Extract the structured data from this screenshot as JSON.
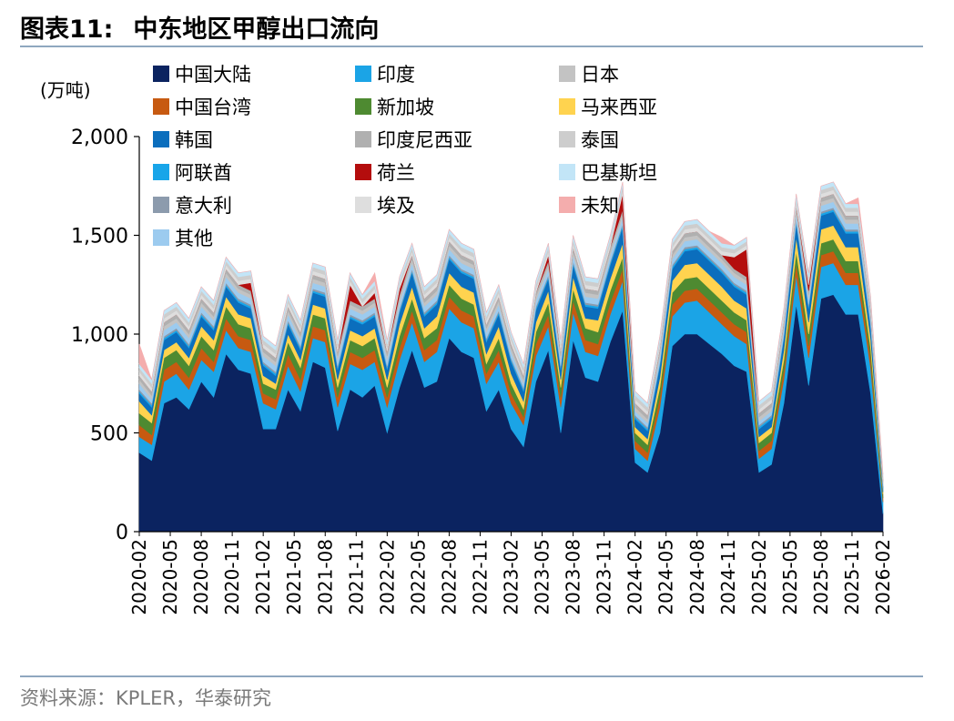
{
  "header": {
    "figure_no": "图表11:",
    "title": "中东地区甲醇出口流向"
  },
  "footer": {
    "source": "资料来源：KPLER，华泰研究"
  },
  "chart_data": {
    "type": "area",
    "stacked": true,
    "ylabel": "(万吨)",
    "ylim": [
      0,
      2000
    ],
    "yticks": [
      0,
      500,
      1000,
      1500,
      2000
    ],
    "ytick_labels": [
      "0",
      "500",
      "1,000",
      "1,500",
      "2,000"
    ],
    "xtick_labels": [
      "2020-02",
      "2020-05",
      "2020-08",
      "2020-11",
      "2021-02",
      "2021-05",
      "2021-08",
      "2021-11",
      "2022-02",
      "2022-05",
      "2022-08",
      "2022-11",
      "2023-02",
      "2023-05",
      "2023-08",
      "2023-11",
      "2024-02",
      "2024-05",
      "2024-08",
      "2024-11",
      "2025-02",
      "2025-05",
      "2025-08",
      "2025-11",
      "2026-02"
    ],
    "legend_position": "top-left",
    "grid": false,
    "series": [
      {
        "name": "中国大陆",
        "color": "#0b2360",
        "values": [
          400,
          360,
          650,
          680,
          620,
          760,
          680,
          900,
          820,
          800,
          520,
          520,
          720,
          610,
          860,
          830,
          510,
          720,
          680,
          740,
          500,
          730,
          920,
          730,
          760,
          980,
          910,
          880,
          610,
          720,
          520,
          430,
          760,
          920,
          500,
          970,
          780,
          760,
          960,
          1120,
          350,
          300,
          500,
          940,
          1000,
          1000,
          950,
          900,
          840,
          810,
          300,
          340,
          650,
          1150,
          740,
          1180,
          1200,
          1100,
          1100,
          700,
          90
        ]
      },
      {
        "name": "印度",
        "color": "#1ba4e6",
        "values": [
          80,
          80,
          110,
          120,
          100,
          110,
          130,
          120,
          110,
          110,
          130,
          100,
          120,
          100,
          120,
          130,
          120,
          130,
          140,
          120,
          130,
          140,
          140,
          130,
          150,
          150,
          150,
          150,
          140,
          140,
          130,
          110,
          130,
          120,
          130,
          140,
          130,
          130,
          140,
          150,
          70,
          60,
          130,
          150,
          160,
          170,
          160,
          150,
          150,
          140,
          70,
          80,
          120,
          150,
          140,
          160,
          160,
          150,
          150,
          130,
          60
        ]
      },
      {
        "name": "中国台湾",
        "color": "#c75a11",
        "values": [
          60,
          50,
          60,
          60,
          60,
          60,
          50,
          60,
          60,
          60,
          50,
          50,
          60,
          60,
          60,
          60,
          50,
          60,
          60,
          60,
          50,
          60,
          60,
          60,
          60,
          60,
          60,
          60,
          50,
          60,
          50,
          40,
          60,
          60,
          50,
          60,
          60,
          60,
          60,
          60,
          40,
          40,
          50,
          60,
          60,
          60,
          60,
          60,
          60,
          60,
          40,
          40,
          50,
          60,
          60,
          60,
          60,
          60,
          60,
          50,
          20
        ]
      },
      {
        "name": "新加坡",
        "color": "#4e8a31",
        "values": [
          60,
          60,
          60,
          60,
          60,
          60,
          60,
          60,
          60,
          60,
          50,
          50,
          60,
          60,
          60,
          60,
          50,
          60,
          60,
          60,
          50,
          60,
          60,
          60,
          60,
          60,
          60,
          60,
          50,
          60,
          50,
          40,
          60,
          60,
          50,
          60,
          60,
          60,
          60,
          60,
          40,
          40,
          50,
          60,
          60,
          60,
          60,
          60,
          60,
          60,
          40,
          40,
          50,
          60,
          60,
          60,
          60,
          60,
          60,
          50,
          20
        ]
      },
      {
        "name": "马来西亚",
        "color": "#ffd34f",
        "values": [
          60,
          40,
          40,
          40,
          40,
          50,
          50,
          50,
          50,
          50,
          40,
          30,
          40,
          40,
          50,
          50,
          40,
          50,
          50,
          50,
          40,
          60,
          60,
          50,
          60,
          60,
          60,
          60,
          50,
          60,
          50,
          40,
          50,
          60,
          40,
          60,
          50,
          60,
          60,
          70,
          30,
          30,
          50,
          60,
          70,
          70,
          70,
          70,
          60,
          60,
          30,
          30,
          50,
          70,
          60,
          70,
          70,
          70,
          70,
          50,
          10
        ]
      },
      {
        "name": "韩国",
        "color": "#0b6ebd",
        "values": [
          40,
          40,
          50,
          50,
          50,
          50,
          50,
          50,
          60,
          50,
          50,
          40,
          50,
          50,
          60,
          60,
          50,
          60,
          60,
          60,
          50,
          60,
          70,
          60,
          60,
          70,
          70,
          70,
          60,
          60,
          60,
          50,
          60,
          60,
          50,
          60,
          60,
          60,
          70,
          80,
          40,
          40,
          60,
          60,
          70,
          70,
          70,
          70,
          70,
          70,
          40,
          40,
          60,
          70,
          70,
          70,
          70,
          70,
          70,
          60,
          20
        ]
      },
      {
        "name": "阿联酋",
        "color": "#18a5e9",
        "values": [
          10,
          10,
          10,
          10,
          10,
          10,
          10,
          10,
          10,
          10,
          10,
          10,
          10,
          10,
          10,
          10,
          10,
          10,
          10,
          10,
          10,
          10,
          10,
          10,
          10,
          10,
          10,
          10,
          10,
          10,
          10,
          10,
          10,
          10,
          10,
          10,
          10,
          10,
          10,
          10,
          10,
          10,
          10,
          10,
          10,
          10,
          10,
          10,
          10,
          10,
          10,
          10,
          10,
          10,
          10,
          10,
          10,
          10,
          10,
          10,
          5
        ]
      },
      {
        "name": "意大利",
        "color": "#8c9bad",
        "values": [
          10,
          10,
          10,
          10,
          10,
          10,
          10,
          10,
          10,
          10,
          10,
          10,
          10,
          10,
          10,
          10,
          10,
          10,
          10,
          10,
          10,
          10,
          10,
          10,
          10,
          10,
          10,
          10,
          10,
          10,
          10,
          10,
          10,
          10,
          10,
          10,
          10,
          10,
          10,
          10,
          10,
          10,
          10,
          10,
          10,
          10,
          10,
          10,
          10,
          10,
          10,
          10,
          10,
          10,
          10,
          10,
          10,
          10,
          10,
          10,
          5
        ]
      },
      {
        "name": "其他",
        "color": "#9ccbef",
        "values": [
          30,
          20,
          30,
          30,
          30,
          30,
          30,
          30,
          30,
          30,
          30,
          30,
          30,
          30,
          30,
          30,
          30,
          30,
          30,
          30,
          30,
          30,
          30,
          30,
          30,
          30,
          30,
          30,
          30,
          30,
          30,
          20,
          30,
          30,
          30,
          30,
          30,
          30,
          30,
          30,
          20,
          20,
          30,
          30,
          30,
          30,
          30,
          30,
          30,
          30,
          20,
          20,
          30,
          30,
          30,
          30,
          30,
          30,
          30,
          30,
          10
        ]
      },
      {
        "name": "日本",
        "color": "#c3c3c3",
        "values": [
          20,
          20,
          20,
          20,
          20,
          20,
          20,
          20,
          20,
          20,
          20,
          20,
          20,
          20,
          20,
          20,
          20,
          20,
          20,
          20,
          20,
          20,
          20,
          20,
          20,
          20,
          20,
          20,
          20,
          20,
          20,
          20,
          20,
          20,
          20,
          20,
          20,
          20,
          20,
          20,
          20,
          20,
          20,
          20,
          20,
          20,
          20,
          20,
          20,
          20,
          20,
          20,
          20,
          20,
          20,
          20,
          20,
          20,
          20,
          20,
          10
        ]
      },
      {
        "name": "印度尼西亚",
        "color": "#b0b0b0",
        "values": [
          20,
          20,
          20,
          20,
          20,
          20,
          20,
          20,
          20,
          20,
          20,
          20,
          20,
          20,
          20,
          20,
          20,
          20,
          20,
          20,
          20,
          20,
          20,
          20,
          20,
          20,
          20,
          20,
          20,
          20,
          20,
          20,
          20,
          20,
          20,
          20,
          20,
          20,
          20,
          20,
          20,
          20,
          20,
          20,
          20,
          20,
          20,
          20,
          20,
          20,
          20,
          20,
          20,
          20,
          20,
          20,
          20,
          20,
          20,
          20,
          10
        ]
      },
      {
        "name": "荷兰",
        "color": "#b40d0d",
        "values": [
          0,
          0,
          0,
          0,
          0,
          0,
          0,
          0,
          0,
          40,
          0,
          0,
          0,
          0,
          0,
          0,
          0,
          80,
          0,
          30,
          0,
          30,
          0,
          0,
          0,
          0,
          0,
          0,
          0,
          0,
          0,
          0,
          0,
          30,
          0,
          0,
          0,
          0,
          0,
          80,
          0,
          0,
          0,
          0,
          0,
          0,
          0,
          0,
          60,
          140,
          0,
          0,
          0,
          0,
          30,
          0,
          0,
          0,
          0,
          0,
          0
        ]
      },
      {
        "name": "埃及",
        "color": "#dedede",
        "values": [
          20,
          20,
          20,
          20,
          20,
          20,
          20,
          20,
          20,
          20,
          20,
          20,
          20,
          20,
          20,
          20,
          20,
          20,
          20,
          20,
          20,
          20,
          20,
          20,
          20,
          20,
          20,
          20,
          20,
          20,
          20,
          20,
          20,
          20,
          20,
          20,
          20,
          20,
          20,
          20,
          20,
          20,
          20,
          20,
          20,
          20,
          20,
          20,
          20,
          20,
          20,
          20,
          20,
          20,
          20,
          20,
          20,
          20,
          20,
          20,
          10
        ]
      },
      {
        "name": "泰国",
        "color": "#cdcdcd",
        "values": [
          20,
          20,
          20,
          20,
          20,
          20,
          20,
          20,
          20,
          20,
          20,
          20,
          20,
          20,
          20,
          20,
          20,
          20,
          20,
          20,
          20,
          20,
          20,
          20,
          20,
          20,
          20,
          20,
          20,
          20,
          20,
          20,
          20,
          20,
          20,
          20,
          20,
          20,
          20,
          20,
          20,
          20,
          20,
          20,
          20,
          20,
          20,
          20,
          20,
          20,
          20,
          20,
          20,
          20,
          20,
          20,
          20,
          20,
          20,
          20,
          10
        ]
      },
      {
        "name": "巴基斯坦",
        "color": "#c2e5f7",
        "values": [
          20,
          20,
          20,
          20,
          20,
          20,
          20,
          20,
          20,
          20,
          20,
          20,
          20,
          20,
          20,
          20,
          20,
          20,
          20,
          20,
          20,
          20,
          20,
          20,
          20,
          20,
          20,
          20,
          20,
          20,
          20,
          20,
          20,
          20,
          20,
          20,
          20,
          20,
          20,
          20,
          20,
          20,
          20,
          20,
          20,
          20,
          20,
          20,
          20,
          20,
          20,
          20,
          20,
          20,
          20,
          20,
          20,
          20,
          20,
          20,
          10
        ]
      },
      {
        "name": "未知",
        "color": "#f4adad",
        "values": [
          100,
          0,
          0,
          0,
          0,
          0,
          0,
          0,
          0,
          0,
          0,
          0,
          0,
          0,
          0,
          0,
          0,
          0,
          0,
          40,
          0,
          0,
          0,
          0,
          0,
          0,
          0,
          0,
          0,
          0,
          0,
          0,
          0,
          0,
          0,
          0,
          0,
          0,
          0,
          0,
          0,
          0,
          0,
          0,
          0,
          0,
          0,
          30,
          0,
          0,
          0,
          0,
          0,
          0,
          0,
          0,
          0,
          0,
          30,
          0,
          0
        ]
      }
    ]
  }
}
